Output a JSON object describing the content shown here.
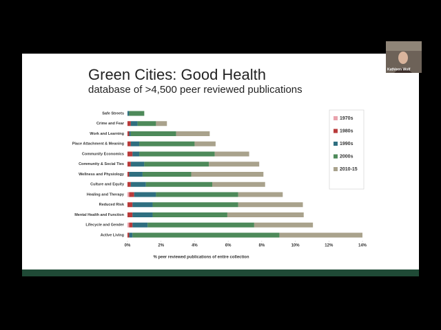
{
  "caller_name": "Kathleen Wolf",
  "chart_data": {
    "type": "stacked-bar-horizontal",
    "title": "Green Cities: Good Health",
    "subtitle": "database of >4,500 peer reviewed publications",
    "x_label": "% peer reviewed publications of entire collection",
    "categories": [
      "Safe Streets",
      "Crime and Fear",
      "Work and Learning",
      "Place Attachment & Meaning",
      "Community Economics",
      "Community & Social Ties",
      "Wellness and Physiology",
      "Culture and Equity",
      "Healing and Therapy",
      "Reduced Risk",
      "Mental Health and Function",
      "Lifecycle and Gender",
      "Active Living"
    ],
    "series": [
      {
        "name": "1970s",
        "color": "#e9a3ad",
        "values": [
          0,
          0,
          0,
          0,
          0,
          0,
          0,
          0,
          0.1,
          0,
          0,
          0.1,
          0
        ]
      },
      {
        "name": "1980s",
        "color": "#b83b3b",
        "values": [
          0,
          0.2,
          0.1,
          0.2,
          0.3,
          0.2,
          0.1,
          0.2,
          0.3,
          0.3,
          0.3,
          0.2,
          0.1
        ]
      },
      {
        "name": "1990s",
        "color": "#2f6f80",
        "values": [
          0.1,
          0.4,
          0.1,
          0.5,
          0.4,
          0.8,
          0.8,
          0.9,
          1.3,
          1.2,
          1.2,
          0.9,
          0.2
        ]
      },
      {
        "name": "2000s",
        "color": "#4e8a5a",
        "values": [
          0.9,
          1.1,
          2.7,
          3.3,
          4.5,
          3.85,
          2.9,
          3.95,
          4.9,
          5.1,
          4.45,
          6.35,
          8.75
        ]
      },
      {
        "name": "2010-15",
        "color": "#a9a28c",
        "values": [
          0,
          0.65,
          2.0,
          1.25,
          2.05,
          3.0,
          4.3,
          3.15,
          2.65,
          3.85,
          4.55,
          3.5,
          4.95
        ]
      }
    ],
    "xlim": [
      0,
      14
    ],
    "xticks": [
      {
        "value": 0,
        "label": "0%"
      },
      {
        "value": 2,
        "label": "2%"
      },
      {
        "value": 4,
        "label": "4%"
      },
      {
        "value": 6,
        "label": "6%"
      },
      {
        "value": 8,
        "label": "8%"
      },
      {
        "value": 10,
        "label": "10%"
      },
      {
        "value": 12,
        "label": "12%"
      },
      {
        "value": 14,
        "label": "14%"
      }
    ],
    "legend": "right"
  }
}
